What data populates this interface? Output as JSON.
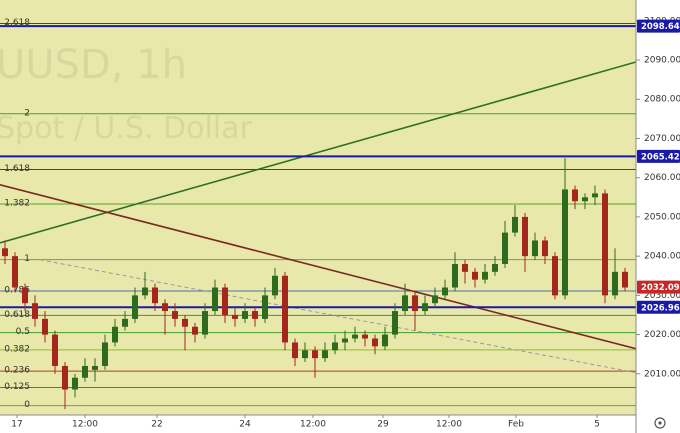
{
  "chart_data": {
    "type": "candlestick",
    "watermark": [
      "UUSD, 1h",
      "Spot / U.S. Dollar"
    ],
    "background": "#e9e8ab",
    "xlim": [
      0,
      127.2
    ],
    "xticks": [
      {
        "value": 3.4,
        "label": "17"
      },
      {
        "value": 17,
        "label": "12:00"
      },
      {
        "value": 31.4,
        "label": "22"
      },
      {
        "value": 49,
        "label": "24"
      },
      {
        "value": 62.6,
        "label": "12:00"
      },
      {
        "value": 76.6,
        "label": "29"
      },
      {
        "value": 89.8,
        "label": "12:00"
      },
      {
        "value": 103.2,
        "label": "Feb"
      },
      {
        "value": 119.4,
        "label": "5"
      }
    ],
    "ylim": [
      1999.5,
      2105.3
    ],
    "yticks": [
      {
        "value": 2010,
        "label": "2010.00"
      },
      {
        "value": 2020,
        "label": "2020.00"
      },
      {
        "value": 2030,
        "label": "2030.00"
      },
      {
        "value": 2040,
        "label": "2040.00"
      },
      {
        "value": 2050,
        "label": "2050.00"
      },
      {
        "value": 2060,
        "label": "2060.00"
      },
      {
        "value": 2070,
        "label": "2070.00"
      },
      {
        "value": 2080,
        "label": "2080.00"
      },
      {
        "value": 2090,
        "label": "2090.00"
      },
      {
        "value": 2100,
        "label": "2100.00"
      }
    ],
    "up_color": "#2e6b1e",
    "down_color": "#a3271c",
    "x": [
      1,
      3,
      5,
      7,
      9,
      11,
      13,
      15,
      17,
      19,
      21,
      23,
      25,
      27,
      29,
      31,
      33,
      35,
      37,
      39,
      41,
      43,
      45,
      47,
      49,
      51,
      53,
      55,
      57,
      59,
      61,
      63,
      65,
      67,
      69,
      71,
      73,
      75,
      77,
      79,
      81,
      83,
      85,
      87,
      89,
      91,
      93,
      95,
      97,
      99,
      101,
      103,
      105,
      107,
      109,
      111,
      113,
      115,
      117,
      119,
      121,
      123,
      125
    ],
    "open": [
      2042,
      2040,
      2032,
      2028,
      2024,
      2020,
      2012,
      2006,
      2009,
      2011,
      2012,
      2018,
      2022,
      2024,
      2030,
      2032,
      2028,
      2026,
      2024,
      2022,
      2020,
      2026,
      2032,
      2025,
      2024,
      2026,
      2024,
      2030,
      2035,
      2018,
      2014,
      2016,
      2014,
      2016,
      2018,
      2019,
      2020,
      2019,
      2017,
      2020,
      2026,
      2030,
      2026,
      2028,
      2030,
      2032,
      2038,
      2036,
      2034,
      2036,
      2038,
      2046,
      2050,
      2040,
      2044,
      2040,
      2030,
      2057,
      2054,
      2055,
      2056,
      2030,
      2036
    ],
    "high": [
      2044,
      2041,
      2033,
      2030,
      2026,
      2021,
      2013,
      2010,
      2014,
      2014,
      2020,
      2024,
      2026,
      2032,
      2036,
      2033,
      2029,
      2028,
      2025,
      2023,
      2028,
      2034,
      2033,
      2027,
      2028,
      2027,
      2032,
      2037,
      2036,
      2019,
      2018,
      2017,
      2018,
      2020,
      2021,
      2022,
      2021,
      2020,
      2022,
      2028,
      2033,
      2031,
      2030,
      2032,
      2034,
      2041,
      2039,
      2037,
      2038,
      2040,
      2049,
      2053,
      2051,
      2046,
      2045,
      2041,
      2065,
      2058,
      2056,
      2058,
      2057,
      2042,
      2037
    ],
    "low": [
      2038,
      2031,
      2026,
      2022,
      2018,
      2010,
      2001,
      2004,
      2008,
      2008,
      2011,
      2017,
      2021,
      2023,
      2029,
      2026,
      2020,
      2022,
      2016,
      2018,
      2019,
      2025,
      2023,
      2022,
      2023,
      2022,
      2023,
      2029,
      2016,
      2012,
      2013,
      2009,
      2013,
      2015,
      2016,
      2018,
      2017,
      2015,
      2016,
      2019,
      2025,
      2021,
      2025,
      2027,
      2029,
      2031,
      2033,
      2032,
      2033,
      2035,
      2037,
      2045,
      2036,
      2039,
      2038,
      2029,
      2029,
      2052,
      2052,
      2053,
      2028,
      2029,
      2031
    ],
    "close": [
      2040,
      2032,
      2028,
      2024,
      2020,
      2012,
      2006,
      2009,
      2012,
      2012,
      2018,
      2022,
      2024,
      2030,
      2032,
      2028,
      2026,
      2024,
      2022,
      2020,
      2026,
      2032,
      2025,
      2024,
      2026,
      2024,
      2030,
      2035,
      2018,
      2014,
      2016,
      2014,
      2016,
      2018,
      2019,
      2020,
      2019,
      2017,
      2020,
      2026,
      2030,
      2026,
      2028,
      2030,
      2032,
      2038,
      2036,
      2034,
      2036,
      2038,
      2046,
      2050,
      2040,
      2044,
      2040,
      2030,
      2057,
      2054,
      2055,
      2056,
      2030,
      2036,
      2032
    ],
    "fib": {
      "levels": [
        0,
        0.125,
        0.236,
        0.382,
        0.5,
        0.618,
        0.786,
        1,
        1.382,
        1.618,
        2,
        2.618
      ],
      "prices": [
        2001.9,
        2006.5,
        2010.7,
        2016.1,
        2020.5,
        2024.9,
        2031.1,
        2039.1,
        2053.3,
        2062.1,
        2076.3,
        2099.3
      ],
      "colors": [
        "#888888",
        "#6b5fa8",
        "#b23a2a",
        "#8bbf2a",
        "#3f9f2a",
        "#2f8f7a",
        "#4a6fb0",
        "#888888",
        "#5aa02a",
        "#2d3faa",
        "#3aa63a",
        "#5a2a9a"
      ]
    },
    "trend_lines": [
      {
        "color": "#2f6e25",
        "dashed": false,
        "x": [
          0,
          127.2
        ],
        "y": [
          2043.4,
          2089.5
        ]
      },
      {
        "color": "#7a2a20",
        "dashed": false,
        "x": [
          0,
          127.2
        ],
        "y": [
          2058.2,
          2016.4
        ]
      },
      {
        "color": "#999999",
        "dashed": true,
        "x": [
          8,
          127.2
        ],
        "y": [
          2039.1,
          2010.3
        ]
      }
    ],
    "levels": [
      {
        "value": 2098.64,
        "color": "#1a1aa8",
        "line": true
      },
      {
        "value": 2065.42,
        "color": "#1a1aa8",
        "line": true
      },
      {
        "value": 2026.96,
        "color": "#1a1aa8",
        "line": true
      },
      {
        "value": 2032.09,
        "color": "#c62828",
        "line": false
      }
    ]
  }
}
